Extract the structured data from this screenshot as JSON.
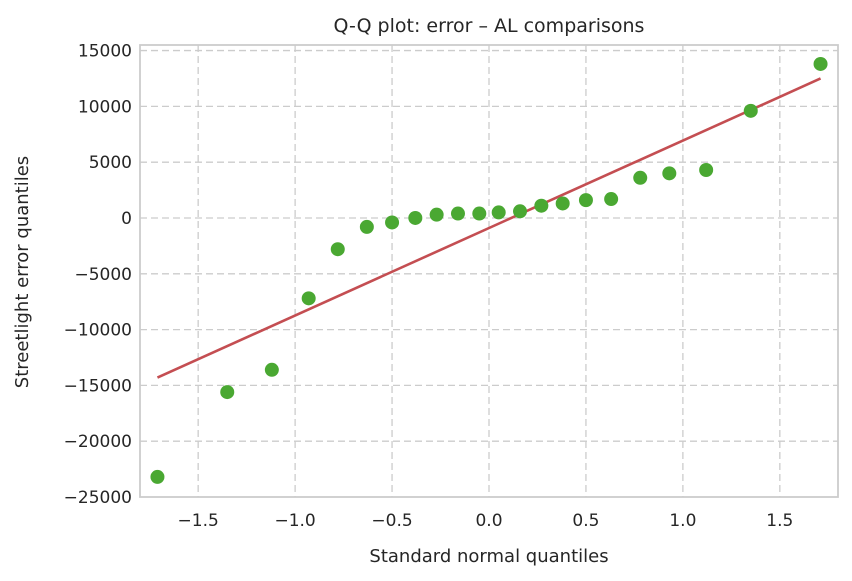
{
  "chart_data": {
    "type": "scatter",
    "title": "Q-Q plot: error – AL comparisons",
    "xlabel": "Standard normal quantiles",
    "ylabel": "Streetlight error quantiles",
    "xlim": [
      -1.8,
      1.8
    ],
    "ylim": [
      -25000,
      15500
    ],
    "x_ticks": [
      -1.5,
      -1.0,
      -0.5,
      0.0,
      0.5,
      1.0,
      1.5
    ],
    "x_tick_labels": [
      "−1.5",
      "−1.0",
      "−0.5",
      "0.0",
      "0.5",
      "1.0",
      "1.5"
    ],
    "y_ticks": [
      -25000,
      -20000,
      -15000,
      -10000,
      -5000,
      0,
      5000,
      10000,
      15000
    ],
    "y_tick_labels": [
      "−25000",
      "−20000",
      "−15000",
      "−10000",
      "−5000",
      "0",
      "5000",
      "10000",
      "15000"
    ],
    "grid": true,
    "series": [
      {
        "kind": "points",
        "color": "#4aa832",
        "x": [
          -1.71,
          -1.35,
          -1.12,
          -0.93,
          -0.78,
          -0.63,
          -0.5,
          -0.38,
          -0.27,
          -0.16,
          -0.05,
          0.05,
          0.16,
          0.27,
          0.38,
          0.5,
          0.63,
          0.78,
          0.93,
          1.12,
          1.35,
          1.71
        ],
        "y": [
          -23200,
          -15600,
          -13600,
          -7200,
          -2800,
          -800,
          -400,
          0,
          300,
          400,
          400,
          500,
          600,
          1100,
          1300,
          1600,
          1700,
          3600,
          4000,
          4300,
          9600,
          13800
        ]
      },
      {
        "kind": "line",
        "color": "#c44e52",
        "x": [
          -1.71,
          1.71
        ],
        "y": [
          -14300,
          12500
        ]
      }
    ]
  }
}
